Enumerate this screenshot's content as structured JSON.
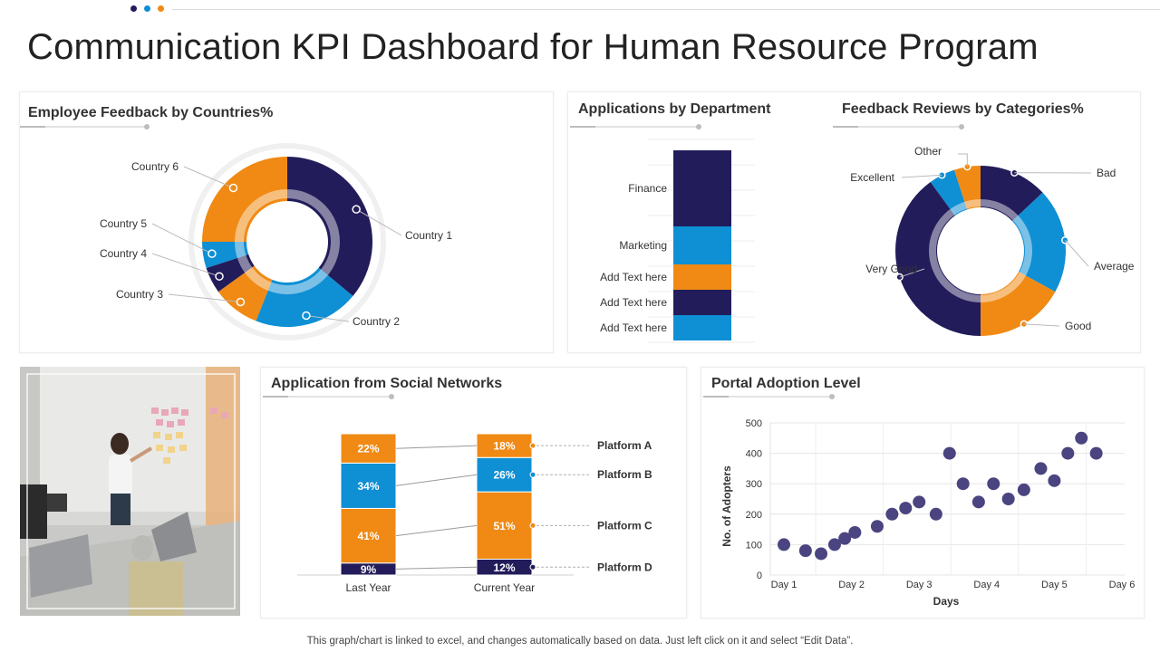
{
  "page_title": "Communication KPI Dashboard for Human Resource Program",
  "footer_note": "This graph/chart is linked to excel,  and changes automatically based on data. Just left click on it and select “Edit Data”.",
  "colors": {
    "navy": "#221c5a",
    "blue": "#0f8fd4",
    "orange": "#f08a14",
    "purple_dot": "#4a4480",
    "grey": "#d9d9d9"
  },
  "header_dots": [
    "#221c5a",
    "#0f8fd4",
    "#f08a14"
  ],
  "panels": {
    "feedback_countries": {
      "title": "Employee Feedback by Countries%"
    },
    "applications_department": {
      "title": "Applications by Department"
    },
    "feedback_categories": {
      "title": "Feedback Reviews by Categories%"
    },
    "social_networks": {
      "title": "Application from Social Networks"
    },
    "portal_adoption": {
      "title": "Portal Adoption Level"
    }
  },
  "chart_data": [
    {
      "id": "feedback_countries",
      "type": "pie",
      "title": "Employee Feedback by Countries%",
      "categories": [
        "Country 1",
        "Country 2",
        "Country 3",
        "Country 4",
        "Country 5",
        "Country 6"
      ],
      "values": [
        36,
        20,
        9,
        5,
        5,
        25
      ],
      "colors": [
        "#221c5a",
        "#0f8fd4",
        "#f08a14",
        "#221c5a",
        "#0f8fd4",
        "#f08a14"
      ]
    },
    {
      "id": "applications_department",
      "type": "bar",
      "title": "Applications by Department",
      "categories": [
        "Finance",
        "Marketing",
        "Add Text here",
        "Add Text here",
        "Add Text here"
      ],
      "values": [
        30,
        15,
        10,
        10,
        10
      ],
      "colors": [
        "#221c5a",
        "#0f8fd4",
        "#f08a14",
        "#221c5a",
        "#0f8fd4"
      ]
    },
    {
      "id": "feedback_categories",
      "type": "pie",
      "title": "Feedback Reviews by Categories%",
      "categories": [
        "Bad",
        "Average",
        "Good",
        "Very Good",
        "Excellent",
        "Other"
      ],
      "values": [
        13,
        20,
        17,
        40,
        5,
        5
      ],
      "colors": [
        "#221c5a",
        "#0f8fd4",
        "#f08a14",
        "#221c5a",
        "#0f8fd4",
        "#f08a14"
      ]
    },
    {
      "id": "social_networks",
      "type": "bar",
      "title": "Application from Social Networks",
      "categories": [
        "Last Year",
        "Current Year"
      ],
      "series": [
        {
          "name": "Platform D",
          "values": [
            9,
            12
          ],
          "labels": [
            "9%",
            "12%"
          ],
          "color": "#221c5a"
        },
        {
          "name": "Platform C",
          "values": [
            41,
            51
          ],
          "labels": [
            "41%",
            "51%"
          ],
          "color": "#f08a14"
        },
        {
          "name": "Platform B",
          "values": [
            34,
            26
          ],
          "labels": [
            "34%",
            "26%"
          ],
          "color": "#0f8fd4"
        },
        {
          "name": "Platform A",
          "values": [
            22,
            18
          ],
          "labels": [
            "22%",
            "18%"
          ],
          "color": "#f08a14"
        }
      ]
    },
    {
      "id": "portal_adoption",
      "type": "scatter",
      "title": "Portal Adoption Level",
      "xlabel": "Days",
      "ylabel": "No. of Adopters",
      "xticks": [
        "Day 1",
        "Day 2",
        "Day 3",
        "Day 4",
        "Day 5",
        "Day 6"
      ],
      "yticks": [
        "0",
        "100",
        "200",
        "300",
        "400",
        "500"
      ],
      "ylim": [
        0,
        500
      ],
      "grid": true,
      "x": [
        1.0,
        1.32,
        1.55,
        1.75,
        1.9,
        2.05,
        2.38,
        2.6,
        2.8,
        3.0,
        3.25,
        3.45,
        3.65,
        3.88,
        4.1,
        4.32,
        4.55,
        4.8,
        5.0,
        5.2,
        5.4,
        5.62
      ],
      "y": [
        100,
        80,
        70,
        100,
        120,
        140,
        160,
        200,
        220,
        240,
        200,
        400,
        300,
        240,
        300,
        250,
        280,
        350,
        310,
        400,
        450,
        400
      ]
    }
  ]
}
